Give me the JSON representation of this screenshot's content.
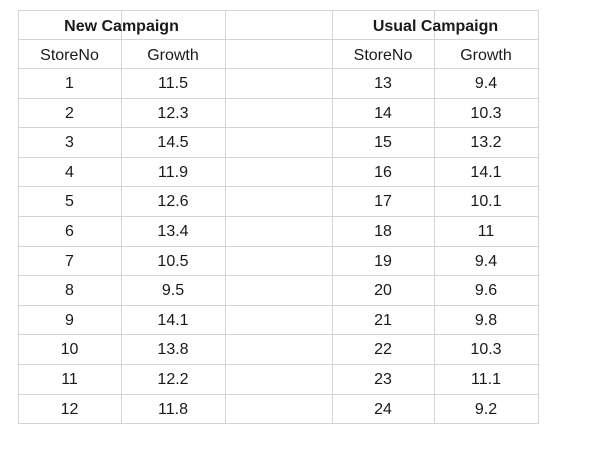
{
  "new_campaign": {
    "title": "New Campaign",
    "headers": [
      "StoreNo",
      "Growth"
    ],
    "rows": [
      [
        "1",
        "11.5"
      ],
      [
        "2",
        "12.3"
      ],
      [
        "3",
        "14.5"
      ],
      [
        "4",
        "11.9"
      ],
      [
        "5",
        "12.6"
      ],
      [
        "6",
        "13.4"
      ],
      [
        "7",
        "10.5"
      ],
      [
        "8",
        "9.5"
      ],
      [
        "9",
        "14.1"
      ],
      [
        "10",
        "13.8"
      ],
      [
        "11",
        "12.2"
      ],
      [
        "12",
        "11.8"
      ]
    ]
  },
  "usual_campaign": {
    "title": "Usual Campaign",
    "headers": [
      "StoreNo",
      "Growth"
    ],
    "rows": [
      [
        "13",
        "9.4"
      ],
      [
        "14",
        "10.3"
      ],
      [
        "15",
        "13.2"
      ],
      [
        "16",
        "14.1"
      ],
      [
        "17",
        "10.1"
      ],
      [
        "18",
        "11"
      ],
      [
        "19",
        "9.4"
      ],
      [
        "20",
        "9.6"
      ],
      [
        "21",
        "9.8"
      ],
      [
        "22",
        "10.3"
      ],
      [
        "23",
        "11.1"
      ],
      [
        "24",
        "9.2"
      ]
    ]
  }
}
